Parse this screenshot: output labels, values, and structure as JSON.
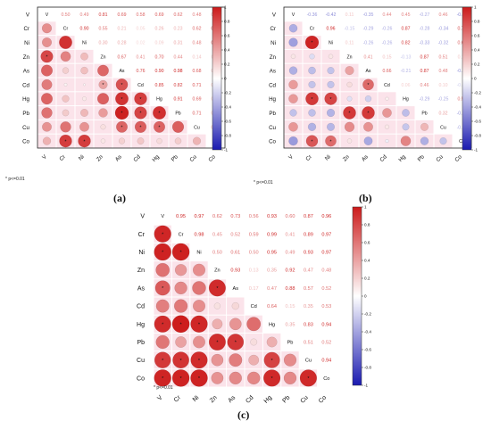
{
  "figure": {
    "significance_note": "* p<=0.01",
    "sig_marker": "*"
  },
  "colors": {
    "positive": "#cc1b1b",
    "negative": "#1a1ab0",
    "neutral": "#ffffff",
    "grid_fill": "#fbe3ea"
  },
  "chart_data": [
    {
      "type": "heatmap",
      "panel_label": "(a)",
      "variables": [
        "V",
        "Cr",
        "Ni",
        "Zn",
        "As",
        "Cd",
        "Hg",
        "Pb",
        "Cu",
        "Co"
      ],
      "colorbar_ticks": [
        "1",
        "0.8",
        "0.6",
        "0.4",
        "0.2",
        "0",
        "-0.2",
        "-0.4",
        "-0.6",
        "-0.8",
        "-1"
      ],
      "upper_labels": [
        [
          "",
          "0.50",
          "0.49",
          "0.81",
          "0.69",
          "0.58",
          "0.69",
          "0.62",
          "0.48",
          "0.34"
        ],
        [
          "",
          "",
          "0.90",
          "0.55",
          "0.21",
          "0.05",
          "0.26",
          "0.23",
          "0.62",
          "0.85"
        ],
        [
          "",
          "",
          "",
          "0.30",
          "0.28",
          "0.02",
          "0.09",
          "0.31",
          "0.48",
          "0.85"
        ],
        [
          "",
          "",
          "",
          "",
          "0.67",
          "0.41",
          "0.70",
          "0.44",
          "0.14",
          "0.11"
        ],
        [
          "",
          "",
          "",
          "",
          "",
          "0.76",
          "0.90",
          "0.98",
          "0.68",
          "0.20"
        ],
        [
          "",
          "",
          "",
          "",
          "",
          "",
          "0.85",
          "0.82",
          "0.71",
          "0.24"
        ],
        [
          "",
          "",
          "",
          "",
          "",
          "",
          "",
          "0.91",
          "0.69",
          "0.16"
        ],
        [
          "",
          "",
          "",
          "",
          "",
          "",
          "",
          "",
          "0.71",
          "0.22"
        ],
        [
          "",
          "",
          "",
          "",
          "",
          "",
          "",
          "",
          "",
          "0.33"
        ],
        [
          "",
          "",
          "",
          "",
          "",
          "",
          "",
          "",
          "",
          ""
        ]
      ],
      "lower_values": [
        [],
        [
          0.5
        ],
        [
          0.49,
          0.9
        ],
        [
          0.81,
          0.55,
          0.3
        ],
        [
          0.69,
          0.21,
          0.28,
          0.67
        ],
        [
          0.58,
          0.05,
          0.02,
          0.41,
          0.76
        ],
        [
          0.69,
          0.26,
          0.09,
          0.7,
          0.9,
          0.85
        ],
        [
          0.62,
          0.23,
          0.31,
          0.44,
          0.98,
          0.82,
          0.91
        ],
        [
          0.48,
          0.62,
          0.48,
          0.14,
          0.68,
          0.71,
          0.69,
          0.71
        ],
        [
          0.34,
          0.85,
          0.85,
          0.11,
          0.2,
          0.24,
          0.16,
          0.22,
          0.33
        ]
      ],
      "significant": [
        [
          3,
          0
        ],
        [
          5,
          3
        ],
        [
          5,
          4
        ],
        [
          6,
          4
        ],
        [
          6,
          5
        ],
        [
          7,
          4
        ],
        [
          7,
          5
        ],
        [
          7,
          6
        ],
        [
          8,
          4
        ],
        [
          8,
          5
        ],
        [
          8,
          6
        ],
        [
          9,
          1
        ],
        [
          9,
          2
        ]
      ]
    },
    {
      "type": "heatmap",
      "panel_label": "(b)",
      "variables": [
        "V",
        "Cr",
        "Ni",
        "Zn",
        "As",
        "Cd",
        "Hg",
        "Pb",
        "Cu",
        "Co"
      ],
      "colorbar_ticks": [
        "1",
        "0.8",
        "0.6",
        "0.4",
        "0.2",
        "0",
        "-0.2",
        "-0.4",
        "-0.6",
        "-0.8",
        "-1"
      ],
      "upper_labels": [
        [
          "",
          "-0.36",
          "-0.42",
          "0.11",
          "-0.35",
          "0.44",
          "0.45",
          "-0.27",
          "0.46",
          "-0.44"
        ],
        [
          "",
          "",
          "0.96",
          "-0.15",
          "-0.29",
          "-0.26",
          "0.87",
          "-0.28",
          "-0.34",
          "0.74"
        ],
        [
          "",
          "",
          "",
          "0.11",
          "-0.26",
          "-0.26",
          "0.82",
          "-0.33",
          "-0.32",
          "0.65"
        ],
        [
          "",
          "",
          "",
          "",
          "0.41",
          "0.15",
          "-0.13",
          "0.87",
          "0.51",
          "0.11"
        ],
        [
          "",
          "",
          "",
          "",
          "",
          "0.66",
          "-0.21",
          "0.87",
          "0.48",
          "-0.38"
        ],
        [
          "",
          "",
          "",
          "",
          "",
          "",
          "0.06",
          "0.46",
          "0.10",
          "-0.06"
        ],
        [
          "",
          "",
          "",
          "",
          "",
          "",
          "",
          "-0.29",
          "-0.25",
          "0.54"
        ],
        [
          "",
          "",
          "",
          "",
          "",
          "",
          "",
          "",
          "0.32",
          "-0.35"
        ],
        [
          "",
          "",
          "",
          "",
          "",
          "",
          "",
          "",
          "",
          "-0.26"
        ],
        [
          "",
          "",
          "",
          "",
          "",
          "",
          "",
          "",
          "",
          ""
        ]
      ],
      "lower_values": [
        [],
        [
          -0.36
        ],
        [
          -0.42,
          0.96
        ],
        [
          0.11,
          -0.15,
          0.11
        ],
        [
          -0.35,
          -0.29,
          -0.26,
          0.41
        ],
        [
          0.44,
          -0.26,
          -0.26,
          0.15,
          0.66
        ],
        [
          0.45,
          0.87,
          0.82,
          -0.13,
          -0.21,
          0.06
        ],
        [
          -0.27,
          -0.28,
          -0.33,
          0.87,
          0.87,
          0.46,
          -0.29
        ],
        [
          0.46,
          -0.34,
          -0.32,
          0.51,
          0.48,
          0.1,
          -0.25,
          0.32
        ],
        [
          -0.44,
          0.74,
          0.65,
          0.11,
          -0.38,
          -0.06,
          0.54,
          -0.35,
          -0.26
        ]
      ],
      "significant": [
        [
          2,
          1
        ],
        [
          5,
          4
        ],
        [
          6,
          1
        ],
        [
          6,
          2
        ],
        [
          7,
          3
        ],
        [
          7,
          4
        ],
        [
          9,
          1
        ],
        [
          9,
          2
        ]
      ]
    },
    {
      "type": "heatmap",
      "panel_label": "(c)",
      "variables": [
        "V",
        "Cr",
        "Ni",
        "Zn",
        "As",
        "Cd",
        "Hg",
        "Pb",
        "Cu",
        "Co"
      ],
      "colorbar_ticks": [
        "1",
        "0.8",
        "0.6",
        "0.4",
        "0.2",
        "0",
        "-0.2",
        "-0.4",
        "-0.6",
        "-0.8",
        "-1"
      ],
      "upper_labels": [
        [
          "",
          "0.95",
          "0.97",
          "0.62",
          "0.73",
          "0.56",
          "0.93",
          "0.60",
          "0.87",
          "0.96"
        ],
        [
          "",
          "",
          "0.98",
          "0.45",
          "0.52",
          "0.59",
          "0.99",
          "0.41",
          "0.89",
          "0.97"
        ],
        [
          "",
          "",
          "",
          "0.50",
          "0.61",
          "0.50",
          "0.95",
          "0.49",
          "0.93",
          "0.97"
        ],
        [
          "",
          "",
          "",
          "",
          "0.93",
          "0.13",
          "0.35",
          "0.92",
          "0.47",
          "0.48"
        ],
        [
          "",
          "",
          "",
          "",
          "",
          "0.17",
          "0.47",
          "0.88",
          "0.57",
          "0.52"
        ],
        [
          "",
          "",
          "",
          "",
          "",
          "",
          "0.64",
          "0.15",
          "0.35",
          "0.53"
        ],
        [
          "",
          "",
          "",
          "",
          "",
          "",
          "",
          "0.35",
          "0.83",
          "0.94"
        ],
        [
          "",
          "",
          "",
          "",
          "",
          "",
          "",
          "",
          "0.51",
          "0.52"
        ],
        [
          "",
          "",
          "",
          "",
          "",
          "",
          "",
          "",
          "",
          "0.94"
        ],
        [
          "",
          "",
          "",
          "",
          "",
          "",
          "",
          "",
          "",
          ""
        ]
      ],
      "lower_values": [
        [],
        [
          0.95
        ],
        [
          0.97,
          0.98
        ],
        [
          0.62,
          0.45,
          0.5
        ],
        [
          0.73,
          0.52,
          0.61,
          0.93
        ],
        [
          0.56,
          0.59,
          0.5,
          0.13,
          0.17
        ],
        [
          0.93,
          0.99,
          0.95,
          0.35,
          0.47,
          0.64
        ],
        [
          0.6,
          0.41,
          0.49,
          0.92,
          0.88,
          0.15,
          0.35
        ],
        [
          0.87,
          0.89,
          0.93,
          0.47,
          0.57,
          0.35,
          0.83,
          0.51
        ],
        [
          0.96,
          0.97,
          0.97,
          0.48,
          0.52,
          0.53,
          0.94,
          0.52,
          0.94
        ]
      ],
      "significant": [
        [
          1,
          0
        ],
        [
          2,
          0
        ],
        [
          2,
          1
        ],
        [
          4,
          0
        ],
        [
          4,
          3
        ],
        [
          6,
          0
        ],
        [
          6,
          1
        ],
        [
          6,
          2
        ],
        [
          7,
          3
        ],
        [
          7,
          4
        ],
        [
          8,
          0
        ],
        [
          8,
          1
        ],
        [
          8,
          2
        ],
        [
          8,
          6
        ],
        [
          9,
          0
        ],
        [
          9,
          1
        ],
        [
          9,
          2
        ],
        [
          9,
          6
        ],
        [
          9,
          8
        ]
      ]
    }
  ]
}
